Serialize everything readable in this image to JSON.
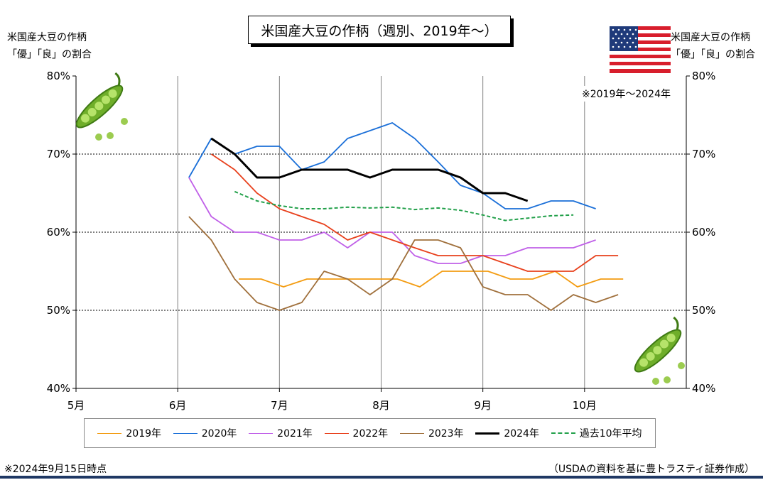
{
  "title": "米国産大豆の作柄（週別、2019年～）",
  "ylabel_left": [
    "米国産大豆の作柄",
    "「優」「良」の割合"
  ],
  "ylabel_right": [
    "米国産大豆の作柄",
    "「優」「良」の割合"
  ],
  "note_period": "※2019年～2024年",
  "note_date": "※2024年9月15日時点",
  "note_source": "（USDAの資料を基に豊トラスティ証券作成）",
  "icons": {
    "flag": "us-flag-icon",
    "beans": "soybean-pod-icon"
  },
  "chart_data": {
    "type": "line",
    "x_axis": {
      "min": 5,
      "max": 11,
      "ticks": [
        5,
        6,
        7,
        8,
        9,
        10
      ],
      "tick_labels": [
        "5月",
        "6月",
        "7月",
        "8月",
        "9月",
        "10月"
      ]
    },
    "y_axis": {
      "min": 40,
      "max": 80,
      "ticks": [
        40,
        50,
        60,
        70,
        80
      ],
      "tick_labels": [
        "40%",
        "50%",
        "60%",
        "70%",
        "80%"
      ]
    },
    "grid": {
      "horizontal": true,
      "vertical": true
    },
    "legend_position": "bottom",
    "series": [
      {
        "name": "2019年",
        "color": "#f39c12",
        "style": "solid",
        "x": [
          6.6,
          6.82,
          7.04,
          7.27,
          7.49,
          7.71,
          7.93,
          8.16,
          8.38,
          8.6,
          8.82,
          9.05,
          9.27,
          9.49,
          9.71,
          9.93,
          10.16,
          10.38
        ],
        "values": [
          54,
          54,
          53,
          54,
          54,
          54,
          54,
          54,
          53,
          55,
          55,
          55,
          54,
          54,
          55,
          53,
          54,
          54
        ]
      },
      {
        "name": "2020年",
        "color": "#1a6fd8",
        "style": "solid",
        "x": [
          6.11,
          6.33,
          6.56,
          6.78,
          7.0,
          7.22,
          7.44,
          7.67,
          7.89,
          8.11,
          8.33,
          8.56,
          8.78,
          9.0,
          9.22,
          9.44,
          9.67,
          9.89,
          10.11
        ],
        "values": [
          67,
          72,
          70,
          71,
          71,
          68,
          69,
          72,
          73,
          74,
          72,
          69,
          66,
          65,
          63,
          63,
          64,
          64,
          63
        ]
      },
      {
        "name": "2021年",
        "color": "#c060e8",
        "style": "solid",
        "x": [
          6.11,
          6.33,
          6.56,
          6.78,
          7.0,
          7.22,
          7.44,
          7.67,
          7.89,
          8.11,
          8.33,
          8.56,
          8.78,
          9.0,
          9.22,
          9.44,
          9.67,
          9.89,
          10.11
        ],
        "values": [
          67,
          62,
          60,
          60,
          59,
          59,
          60,
          58,
          60,
          60,
          57,
          56,
          56,
          57,
          57,
          58,
          58,
          58,
          59
        ]
      },
      {
        "name": "2022年",
        "color": "#e8401c",
        "style": "solid",
        "x": [
          6.33,
          6.56,
          6.78,
          7.0,
          7.22,
          7.44,
          7.67,
          7.89,
          8.11,
          8.33,
          8.56,
          8.78,
          9.0,
          9.22,
          9.44,
          9.67,
          9.89,
          10.11,
          10.33
        ],
        "values": [
          70,
          68,
          65,
          63,
          62,
          61,
          59,
          60,
          59,
          58,
          57,
          57,
          57,
          56,
          55,
          55,
          55,
          57,
          57
        ]
      },
      {
        "name": "2023年",
        "color": "#a0703c",
        "style": "solid",
        "x": [
          6.11,
          6.33,
          6.56,
          6.78,
          7.0,
          7.22,
          7.44,
          7.67,
          7.89,
          8.11,
          8.33,
          8.56,
          8.78,
          9.0,
          9.22,
          9.44,
          9.67,
          9.89,
          10.11,
          10.33
        ],
        "values": [
          62,
          59,
          54,
          51,
          50,
          51,
          55,
          54,
          52,
          54,
          59,
          59,
          58,
          53,
          52,
          52,
          50,
          52,
          51,
          52
        ]
      },
      {
        "name": "2024年",
        "color": "#000000",
        "style": "bold",
        "x": [
          6.33,
          6.56,
          6.78,
          7.0,
          7.22,
          7.44,
          7.67,
          7.89,
          8.11,
          8.33,
          8.56,
          8.78,
          9.0,
          9.22,
          9.44
        ],
        "values": [
          72,
          70,
          67,
          67,
          68,
          68,
          68,
          67,
          68,
          68,
          68,
          67,
          65,
          65,
          64
        ]
      },
      {
        "name": "過去10年平均",
        "color": "#22a04a",
        "style": "dashed",
        "x": [
          6.56,
          6.78,
          7.0,
          7.22,
          7.44,
          7.67,
          7.89,
          8.11,
          8.33,
          8.56,
          8.78,
          9.0,
          9.22,
          9.44,
          9.67,
          9.89
        ],
        "values": [
          65.2,
          64.0,
          63.4,
          63.0,
          63.0,
          63.2,
          63.1,
          63.2,
          62.9,
          63.1,
          62.8,
          62.2,
          61.5,
          61.8,
          62.1,
          62.2
        ]
      }
    ]
  }
}
